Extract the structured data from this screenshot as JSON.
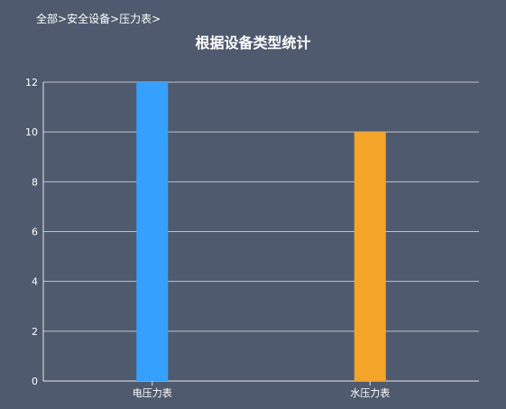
{
  "breadcrumb": {
    "items": [
      "全部",
      "安全设备",
      "压力表"
    ],
    "separator": ">"
  },
  "chart_data": {
    "type": "bar",
    "title": "根据设备类型统计",
    "categories": [
      "电压力表",
      "水压力表"
    ],
    "values": [
      12,
      10
    ],
    "colors": [
      "#35a0fe",
      "#f5a42a"
    ],
    "ylim": [
      0,
      12
    ],
    "yticks": [
      0,
      2,
      4,
      6,
      8,
      10,
      12
    ],
    "grid": true
  }
}
